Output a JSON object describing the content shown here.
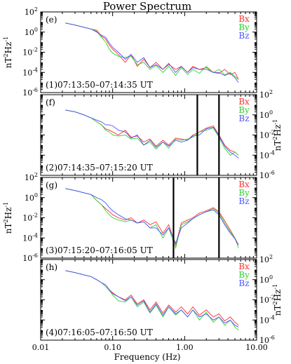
{
  "chart_data": {
    "type": "line",
    "title": "Power Spectrum",
    "xlabel": "Frequency (Hz)",
    "ylabel_main": "nT",
    "ylabel_sup": "2",
    "ylabel_mid": "Hz",
    "ylabel_sup2": "-1",
    "x_scale": "log",
    "y_scale": "log",
    "xlim": [
      0.01,
      10.0
    ],
    "ylim": [
      1e-06,
      100
    ],
    "x_ticks": [
      "0.01",
      "0.10",
      "1.00",
      "10.00"
    ],
    "y_ticks": [
      {
        "base": "10",
        "exp": "2"
      },
      {
        "base": "10",
        "exp": "0"
      },
      {
        "base": "10",
        "exp": "-2"
      },
      {
        "base": "10",
        "exp": "-4"
      },
      {
        "base": "10",
        "exp": "-6"
      }
    ],
    "legend": {
      "placement": "top-right",
      "entries": [
        {
          "label": "Bx",
          "color": "#ff3030"
        },
        {
          "label": "By",
          "color": "#30d030"
        },
        {
          "label": "Bz",
          "color": "#4a55ff"
        }
      ]
    },
    "panels": [
      {
        "letter": "(e)",
        "label": "(1)07:13:50–07:14:35 UT",
        "y_axis_side": "left",
        "vlines_hz": []
      },
      {
        "letter": "(f)",
        "label": "(2)07:14:35–07:15:20 UT",
        "y_axis_side": "right",
        "vlines_hz": [
          1.5,
          3.0
        ]
      },
      {
        "letter": "(g)",
        "label": "(3)07:15:20–07:16:05 UT",
        "y_axis_side": "left",
        "vlines_hz": [
          0.7,
          3.0
        ]
      },
      {
        "letter": "(h)",
        "label": "(4)07:16:05–07:16:50 UT",
        "y_axis_side": "right",
        "vlines_hz": []
      }
    ],
    "series_x_hz": [
      0.022,
      0.03,
      0.04,
      0.05,
      0.06,
      0.07,
      0.08,
      0.09,
      0.1,
      0.12,
      0.15,
      0.18,
      0.22,
      0.27,
      0.33,
      0.4,
      0.5,
      0.6,
      0.75,
      0.9,
      1.1,
      1.3,
      1.6,
      2.0,
      2.5,
      3.0,
      3.6,
      4.3,
      5.0,
      5.6
    ],
    "series": [
      {
        "panel": 0,
        "name": "Bx",
        "values": [
          8,
          5,
          3,
          2,
          1.5,
          0.4,
          0.2,
          0.05,
          0.02,
          0.006,
          0.001,
          0.006,
          0.0004,
          0.002,
          0.0003,
          0.001,
          0.0002,
          0.0006,
          0.0002,
          0.0004,
          0.0001,
          0.0004,
          0.0002,
          0.0003,
          0.0001,
          8e-05,
          0.0002,
          6e-05,
          0.0001,
          2e-05
        ]
      },
      {
        "panel": 0,
        "name": "By",
        "values": [
          8,
          5,
          3,
          2,
          1.2,
          0.3,
          0.1,
          0.02,
          0.008,
          0.004,
          0.003,
          0.004,
          0.0006,
          0.001,
          0.0002,
          0.0005,
          0.0001,
          0.0004,
          5e-05,
          0.0003,
          6e-05,
          0.0002,
          8e-05,
          0.0004,
          0.0001,
          0.0002,
          6e-05,
          0.0001,
          4e-05,
          2e-05
        ]
      },
      {
        "panel": 0,
        "name": "Bz",
        "values": [
          8,
          5,
          3,
          2,
          1.0,
          0.5,
          0.3,
          0.08,
          0.03,
          0.01,
          0.002,
          0.006,
          0.001,
          0.003,
          0.0003,
          0.0006,
          0.0002,
          0.0008,
          0.0001,
          0.0004,
          0.0001,
          0.0003,
          0.0002,
          0.0002,
          0.0001,
          0.0001,
          5e-05,
          8e-05,
          3e-05,
          1e-05
        ]
      },
      {
        "panel": 1,
        "name": "Bx",
        "values": [
          3,
          2,
          1,
          0.5,
          0.2,
          0.1,
          0.04,
          0.03,
          0.02,
          0.01,
          0.03,
          0.006,
          0.008,
          0.002,
          0.004,
          0.0008,
          0.003,
          0.001,
          0.005,
          0.004,
          0.003,
          0.01,
          0.02,
          0.05,
          0.08,
          0.01,
          0.001,
          0.0003,
          0.0002,
          0.0001
        ]
      },
      {
        "panel": 1,
        "name": "By",
        "values": [
          3,
          2,
          1,
          0.5,
          0.2,
          0.1,
          0.03,
          0.02,
          0.01,
          0.008,
          0.01,
          0.004,
          0.005,
          0.001,
          0.002,
          0.0004,
          0.002,
          0.0005,
          0.004,
          0.003,
          0.004,
          0.006,
          0.02,
          0.03,
          0.05,
          0.006,
          0.0005,
          0.0001,
          0.0002,
          0.0001
        ]
      },
      {
        "panel": 1,
        "name": "Bz",
        "values": [
          3,
          2,
          1,
          0.5,
          0.3,
          0.2,
          0.1,
          0.1,
          0.08,
          0.03,
          0.02,
          0.005,
          0.01,
          0.001,
          0.003,
          0.0006,
          0.002,
          0.0008,
          0.003,
          0.002,
          0.003,
          0.008,
          0.01,
          0.04,
          0.06,
          0.008,
          0.0008,
          0.0002,
          0.0001,
          5e-05
        ]
      },
      {
        "panel": 2,
        "name": "Bx",
        "values": [
          8,
          5,
          3,
          2,
          0.5,
          0.2,
          0.08,
          0.04,
          0.02,
          0.01,
          0.006,
          0.01,
          0.003,
          0.006,
          0.002,
          0.004,
          0.0003,
          0.002,
          2e-05,
          0.003,
          0.006,
          0.01,
          0.03,
          0.05,
          0.1,
          0.04,
          0.005,
          0.0006,
          0.0001,
          2e-05
        ]
      },
      {
        "panel": 2,
        "name": "By",
        "values": [
          8,
          5,
          3,
          2,
          0.5,
          0.2,
          0.05,
          0.02,
          0.01,
          0.006,
          0.004,
          0.006,
          0.003,
          0.004,
          0.001,
          0.002,
          0.0001,
          0.001,
          1e-05,
          0.002,
          0.004,
          0.008,
          0.02,
          0.04,
          0.08,
          0.03,
          0.003,
          0.0004,
          0.0001,
          1e-05
        ]
      },
      {
        "panel": 2,
        "name": "Bz",
        "values": [
          8,
          5,
          3,
          2,
          1,
          0.6,
          0.3,
          0.1,
          0.05,
          0.02,
          0.008,
          0.006,
          0.003,
          0.004,
          0.001,
          0.001,
          0.0002,
          0.001,
          3e-05,
          0.001,
          0.003,
          0.008,
          0.02,
          0.04,
          0.06,
          0.02,
          0.002,
          0.0003,
          8e-05,
          2e-05
        ]
      },
      {
        "panel": 3,
        "name": "Bx",
        "values": [
          8,
          5,
          3,
          2,
          1,
          0.5,
          0.3,
          0.1,
          0.05,
          0.02,
          0.01,
          0.03,
          0.004,
          0.01,
          0.001,
          0.006,
          0.0005,
          0.003,
          0.0006,
          0.002,
          0.0004,
          0.002,
          0.0003,
          0.001,
          0.0002,
          0.0004,
          8e-05,
          0.0002,
          6e-05,
          3e-05
        ]
      },
      {
        "panel": 3,
        "name": "By",
        "values": [
          8,
          5,
          3,
          2,
          1,
          0.5,
          0.2,
          0.08,
          0.03,
          0.008,
          0.006,
          0.02,
          0.002,
          0.006,
          0.0005,
          0.003,
          0.0002,
          0.002,
          0.0003,
          0.001,
          0.0002,
          0.001,
          0.0001,
          0.0006,
          6e-05,
          0.0002,
          3e-05,
          0.0001,
          2e-05,
          1e-05
        ]
      },
      {
        "panel": 3,
        "name": "Bz",
        "values": [
          8,
          5,
          3,
          2,
          1,
          0.5,
          0.3,
          0.1,
          0.04,
          0.02,
          0.008,
          0.02,
          0.003,
          0.008,
          0.0006,
          0.004,
          0.0003,
          0.002,
          0.0004,
          0.001,
          0.0002,
          0.001,
          0.0002,
          0.0004,
          0.0001,
          0.0002,
          5e-05,
          0.0001,
          3e-05,
          2e-05
        ]
      }
    ]
  }
}
